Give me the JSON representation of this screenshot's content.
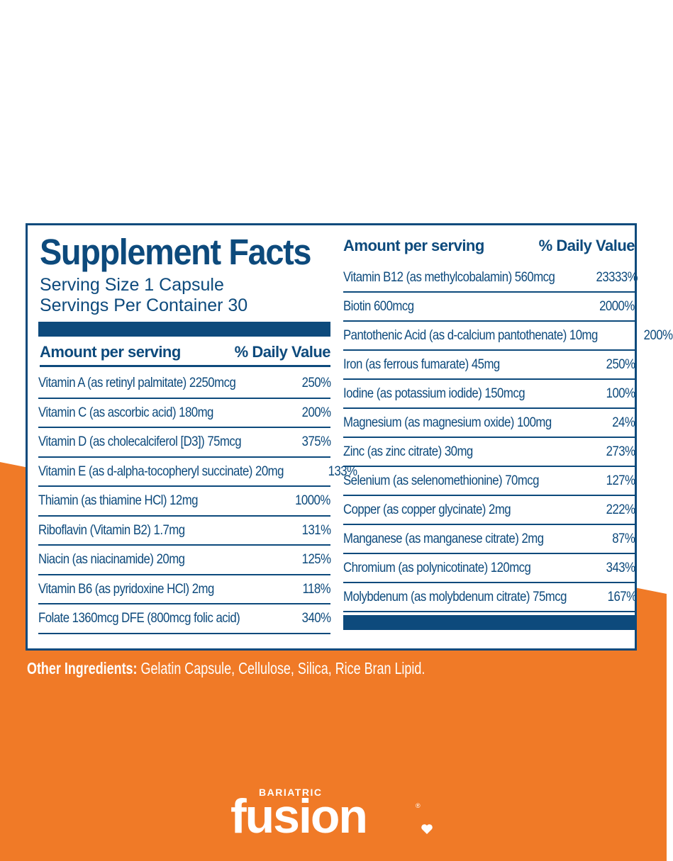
{
  "colors": {
    "navy": "#0d4a7c",
    "orange": "#f07a27",
    "white": "#ffffff"
  },
  "panel": {
    "title": "Supplement Facts",
    "serving_size": "Serving Size 1 Capsule",
    "servings_per_container": "Servings Per Container 30",
    "header_amount": "Amount per serving",
    "header_dv": "% Daily Value",
    "left_rows": [
      {
        "name": "Vitamin A (as retinyl palmitate) 2250mcg",
        "dv": "250%"
      },
      {
        "name": "Vitamin C (as ascorbic acid) 180mg",
        "dv": "200%"
      },
      {
        "name": "Vitamin D (as cholecalciferol [D3]) 75mcg",
        "dv": "375%"
      },
      {
        "name": "Vitamin E (as d-alpha-tocopheryl succinate) 20mg",
        "dv": "133%"
      },
      {
        "name": "Thiamin (as thiamine HCl) 12mg",
        "dv": "1000%"
      },
      {
        "name": "Riboflavin (Vitamin B2) 1.7mg",
        "dv": "131%"
      },
      {
        "name": "Niacin (as niacinamide) 20mg",
        "dv": "125%"
      },
      {
        "name": "Vitamin B6 (as pyridoxine HCl) 2mg",
        "dv": "118%"
      },
      {
        "name": "Folate 1360mcg DFE (800mcg folic acid)",
        "dv": "340%"
      }
    ],
    "right_rows": [
      {
        "name": "Vitamin B12 (as methylcobalamin) 560mcg",
        "dv": "23333%"
      },
      {
        "name": "Biotin 600mcg",
        "dv": "2000%"
      },
      {
        "name": "Pantothenic Acid (as d-calcium pantothenate) 10mg",
        "dv": "200%"
      },
      {
        "name": "Iron (as ferrous fumarate) 45mg",
        "dv": "250%"
      },
      {
        "name": "Iodine (as potassium iodide) 150mcg",
        "dv": "100%"
      },
      {
        "name": "Magnesium (as magnesium oxide) 100mg",
        "dv": "24%"
      },
      {
        "name": "Zinc (as zinc citrate) 30mg",
        "dv": "273%"
      },
      {
        "name": "Selenium (as selenomethionine) 70mcg",
        "dv": "127%"
      },
      {
        "name": "Copper (as copper glycinate) 2mg",
        "dv": "222%"
      },
      {
        "name": "Manganese (as manganese citrate) 2mg",
        "dv": "87%"
      },
      {
        "name": "Chromium (as polynicotinate) 120mcg",
        "dv": "343%"
      },
      {
        "name": "Molybdenum (as molybdenum citrate) 75mcg",
        "dv": "167%"
      }
    ]
  },
  "other_ingredients": {
    "label": "Other Ingredients:",
    "text": " Gelatin Capsule, Cellulose, Silica, Rice Bran Lipid."
  },
  "brand": {
    "small": "BARIATRIC",
    "name": "fusion",
    "reg": "®",
    "icon": "heart-icon"
  }
}
